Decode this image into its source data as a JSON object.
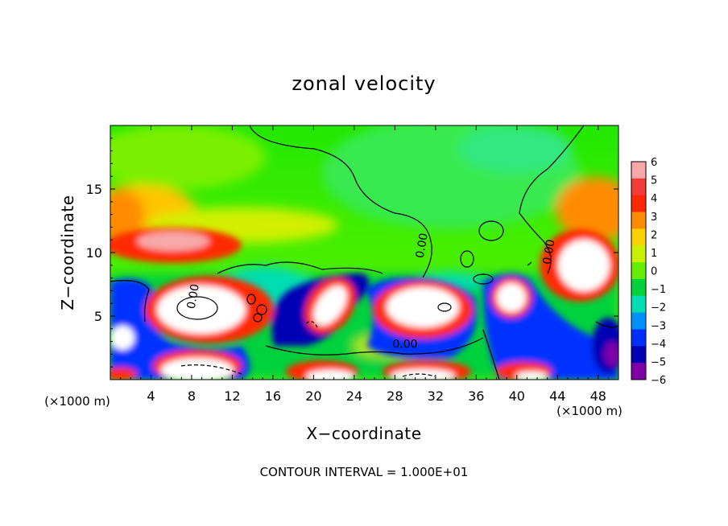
{
  "chart_data": {
    "type": "heatmap",
    "title": "zonal velocity",
    "xlabel": "X−coordinate",
    "ylabel": "Z−coordinate",
    "x_unit": "(×1000 m)",
    "y_unit": "(×1000 m)",
    "xlim": [
      0,
      50
    ],
    "ylim": [
      0,
      20
    ],
    "x_ticks": [
      4,
      8,
      12,
      16,
      20,
      24,
      28,
      32,
      36,
      40,
      44,
      48
    ],
    "y_ticks": [
      5,
      10,
      15
    ],
    "colorbar": {
      "levels": [
        6,
        5,
        4,
        3,
        2,
        1,
        0,
        -1,
        -2,
        -3,
        -4,
        -5,
        -6
      ],
      "labels": [
        "6",
        "5",
        "4",
        "3",
        "2",
        "1",
        "0",
        "−1",
        "−2",
        "−3",
        "−4",
        "−5",
        "−6"
      ],
      "colors": [
        "#f7a8a8",
        "#f53a3a",
        "#ff2a00",
        "#ff8c00",
        "#ffd000",
        "#c8f000",
        "#66ee00",
        "#00d23c",
        "#00ddb0",
        "#0090ff",
        "#0030ff",
        "#0000b4",
        "#8000a8"
      ]
    },
    "contour_labels": [
      {
        "x": 8.5,
        "y": 6.5,
        "text": "0.00"
      },
      {
        "x": 31,
        "y": 10.5,
        "text": "0.00"
      },
      {
        "x": 43.5,
        "y": 10,
        "text": "0.00"
      },
      {
        "x": 29,
        "y": 2.5,
        "text": "0.00"
      }
    ],
    "footer": "CONTOUR INTERVAL = 1.000E+01"
  }
}
